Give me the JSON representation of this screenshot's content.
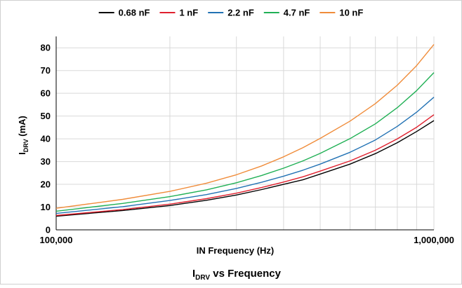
{
  "chart_data": {
    "type": "line",
    "title": "vs Frequency",
    "title_symbol": {
      "base": "I",
      "sub": "DRV"
    },
    "xlabel": "IN Frequency (Hz)",
    "ylabel": "(mA)",
    "ylabel_symbol": {
      "base": "I",
      "sub": "DRV"
    },
    "x_scale": "log",
    "xlim": [
      100000,
      1000000
    ],
    "ylim": [
      0,
      85
    ],
    "x_ticks": [
      100000,
      1000000
    ],
    "x_tick_labels": [
      "100,000",
      "1,000,000"
    ],
    "y_ticks": [
      0,
      10,
      20,
      30,
      40,
      50,
      60,
      70,
      80
    ],
    "y_tick_labels": [
      "0",
      "10",
      "20",
      "30",
      "40",
      "50",
      "60",
      "70",
      "80"
    ],
    "grid": true,
    "legend_position": "top",
    "x": [
      100000,
      150000,
      200000,
      250000,
      300000,
      350000,
      400000,
      450000,
      500000,
      600000,
      700000,
      800000,
      900000,
      1000000
    ],
    "series": [
      {
        "name": "0.68 nF",
        "color": "#000000",
        "values": [
          6,
          8.5,
          10.7,
          13,
          15.3,
          17.7,
          20,
          22,
          24.5,
          28.9,
          33.5,
          38.3,
          43.2,
          48
        ]
      },
      {
        "name": "1 nF",
        "color": "#e0202e",
        "values": [
          6.3,
          8.9,
          11.3,
          13.7,
          16.1,
          18.6,
          21,
          23.3,
          25.8,
          30.3,
          35,
          40,
          45.1,
          50.6
        ]
      },
      {
        "name": "2.2 nF",
        "color": "#2272b4",
        "values": [
          7.2,
          10.2,
          12.9,
          15.5,
          18.2,
          20.9,
          23.6,
          26.2,
          28.9,
          34.1,
          39.5,
          45.5,
          51.7,
          58.3
        ]
      },
      {
        "name": "4.7 nF",
        "color": "#20b055",
        "values": [
          8.2,
          11.6,
          14.6,
          17.6,
          20.7,
          23.9,
          27.1,
          30.3,
          33.6,
          40.1,
          46.6,
          53.7,
          61.2,
          69.1
        ]
      },
      {
        "name": "10 nF",
        "color": "#f08c3a",
        "values": [
          9.5,
          13.4,
          16.9,
          20.5,
          24.2,
          28.1,
          32.1,
          36.1,
          40.2,
          47.8,
          55.5,
          63.6,
          72.2,
          81.5
        ]
      }
    ]
  }
}
